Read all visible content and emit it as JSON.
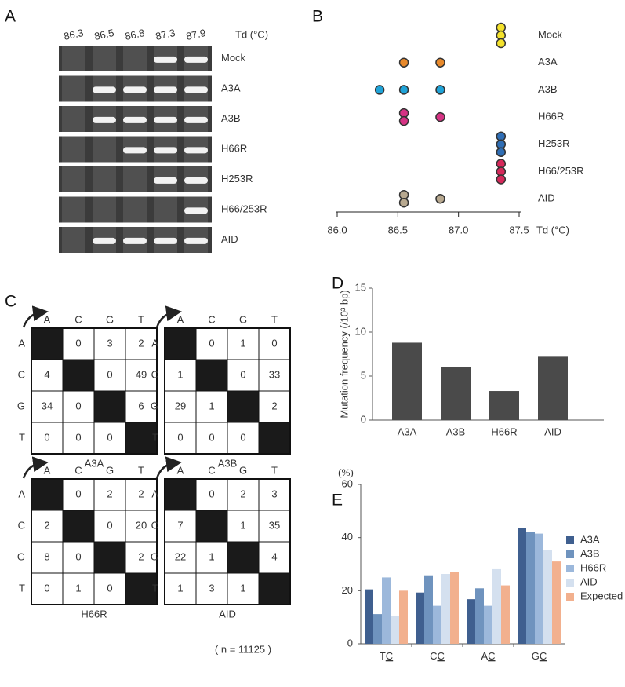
{
  "panel_labels": [
    "A",
    "B",
    "C",
    "D",
    "E"
  ],
  "gel": {
    "lanes": [
      "86.3",
      "86.5",
      "86.8",
      "87.3",
      "87.9"
    ],
    "axis_label": "Td (°C)",
    "rows": [
      {
        "label": "Mock",
        "bands": [
          false,
          false,
          false,
          true,
          true
        ]
      },
      {
        "label": "A3A",
        "bands": [
          false,
          true,
          true,
          true,
          true
        ]
      },
      {
        "label": "A3B",
        "bands": [
          false,
          true,
          true,
          true,
          true
        ]
      },
      {
        "label": "H66R",
        "bands": [
          false,
          false,
          true,
          true,
          true
        ]
      },
      {
        "label": "H253R",
        "bands": [
          false,
          false,
          false,
          true,
          true
        ]
      },
      {
        "label": "H66/253R",
        "bands": [
          false,
          false,
          false,
          false,
          true
        ]
      },
      {
        "label": "AID",
        "bands": [
          false,
          true,
          true,
          true,
          true
        ]
      }
    ]
  },
  "matrices": {
    "columns": [
      "A",
      "C",
      "G",
      "T"
    ],
    "rows": [
      "A",
      "C",
      "G",
      "T"
    ],
    "note": "( n = 11125 )",
    "items": [
      {
        "title": "A3A",
        "cells": [
          [
            null,
            0,
            3,
            2
          ],
          [
            4,
            null,
            0,
            49
          ],
          [
            34,
            0,
            null,
            6
          ],
          [
            0,
            0,
            0,
            null
          ]
        ]
      },
      {
        "title": "A3B",
        "cells": [
          [
            null,
            0,
            1,
            0
          ],
          [
            1,
            null,
            0,
            33
          ],
          [
            29,
            1,
            null,
            2
          ],
          [
            0,
            0,
            0,
            null
          ]
        ]
      },
      {
        "title": "H66R",
        "cells": [
          [
            null,
            0,
            2,
            2
          ],
          [
            2,
            null,
            0,
            20
          ],
          [
            8,
            0,
            null,
            2
          ],
          [
            0,
            1,
            0,
            null
          ]
        ]
      },
      {
        "title": "AID",
        "cells": [
          [
            null,
            0,
            2,
            3
          ],
          [
            7,
            null,
            1,
            35
          ],
          [
            22,
            1,
            null,
            4
          ],
          [
            1,
            3,
            1,
            null
          ]
        ]
      }
    ]
  },
  "chart_data": [
    {
      "type": "dot",
      "x_label": "Td (°C)",
      "xlim": [
        86.0,
        87.5
      ],
      "xticks": [
        {
          "value": 86,
          "label": "86.0"
        },
        86.5,
        {
          "value": 87,
          "label": "87.0"
        },
        87.5
      ],
      "series": [
        {
          "name": "Mock",
          "color": "#f4e22c",
          "x": [
            87.35,
            87.35,
            87.35
          ]
        },
        {
          "name": "A3A",
          "color": "#e8892b",
          "x": [
            86.55,
            86.85
          ]
        },
        {
          "name": "A3B",
          "color": "#1fa3d8",
          "x": [
            86.35,
            86.55,
            86.85
          ]
        },
        {
          "name": "H66R",
          "color": "#d63384",
          "x": [
            86.55,
            86.55,
            86.85
          ]
        },
        {
          "name": "H253R",
          "color": "#2f6eb5",
          "x": [
            87.35,
            87.35,
            87.35
          ]
        },
        {
          "name": "H66/253R",
          "color": "#d6285a",
          "x": [
            87.35,
            87.35,
            87.35
          ]
        },
        {
          "name": "AID",
          "color": "#b8a990",
          "x": [
            86.55,
            86.55,
            86.85
          ]
        }
      ]
    },
    {
      "type": "bar",
      "y_label": "Mutation frequency (/10³ bp)",
      "categories": [
        "A3A",
        "A3B",
        "H66R",
        "AID"
      ],
      "values": [
        8.8,
        6.0,
        3.3,
        7.2
      ],
      "color": "#4a4a4a",
      "ylim": [
        0,
        15
      ],
      "yticks": [
        0,
        5,
        10,
        15
      ]
    },
    {
      "type": "grouped_bar",
      "y_unit": "(%)",
      "categories": [
        "TC",
        "CC",
        "AC",
        "GC"
      ],
      "ylim": [
        0,
        60
      ],
      "yticks": [
        0,
        20,
        40,
        60
      ],
      "series": [
        {
          "name": "A3A",
          "color": "#3f5f8f",
          "values": [
            20.5,
            19.3,
            16.8,
            43.5
          ]
        },
        {
          "name": "A3B",
          "color": "#6f93be",
          "values": [
            11.2,
            25.8,
            20.9,
            42.0
          ]
        },
        {
          "name": "H66R",
          "color": "#9cb8db",
          "values": [
            25.0,
            14.3,
            14.3,
            41.5
          ]
        },
        {
          "name": "AID",
          "color": "#d4e0ef",
          "values": [
            10.5,
            26.3,
            28.1,
            35.3
          ]
        },
        {
          "name": "Expected",
          "color": "#f2b08e",
          "values": [
            20.0,
            27.0,
            22.0,
            31.0
          ]
        }
      ]
    }
  ]
}
